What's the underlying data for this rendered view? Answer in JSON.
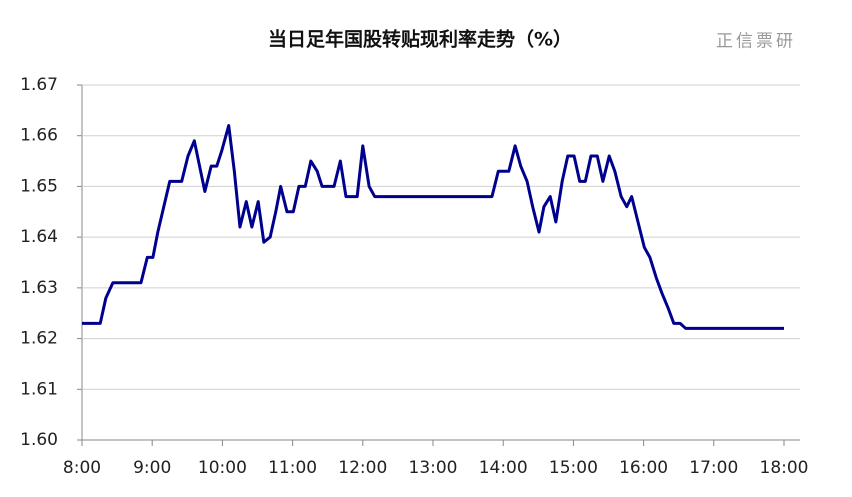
{
  "chart_data": {
    "type": "line",
    "title": "当日足年国股转贴现利率走势（%）",
    "watermark": "正信票研",
    "color": "#00008f",
    "grid": true,
    "xlim": [
      8,
      18
    ],
    "xticks": [
      {
        "value": 8,
        "label": "8:00"
      },
      {
        "value": 9,
        "label": "9:00"
      },
      {
        "value": 10,
        "label": "10:00"
      },
      {
        "value": 11,
        "label": "11:00"
      },
      {
        "value": 12,
        "label": "12:00"
      },
      {
        "value": 13,
        "label": "13:00"
      },
      {
        "value": 14,
        "label": "14:00"
      },
      {
        "value": 15,
        "label": "15:00"
      },
      {
        "value": 16,
        "label": "16:00"
      },
      {
        "value": 17,
        "label": "17:00"
      },
      {
        "value": 18,
        "label": "18:00"
      }
    ],
    "ylim": [
      1.6,
      1.67
    ],
    "yticks": [
      {
        "value": 1.6,
        "label": "1.60"
      },
      1.61,
      1.62,
      1.63,
      1.64,
      1.65,
      1.66,
      1.67
    ],
    "x": [
      8.0,
      8.26,
      8.34,
      8.44,
      8.84,
      8.93,
      9.01,
      9.08,
      9.25,
      9.42,
      9.51,
      9.6,
      9.75,
      9.84,
      9.92,
      9.99,
      10.09,
      10.17,
      10.25,
      10.34,
      10.42,
      10.51,
      10.59,
      10.68,
      10.76,
      10.83,
      10.92,
      11.01,
      11.09,
      11.18,
      11.26,
      11.35,
      11.42,
      11.59,
      11.68,
      11.76,
      11.92,
      12.0,
      12.09,
      12.17,
      13.84,
      13.93,
      14.08,
      14.17,
      14.25,
      14.34,
      14.42,
      14.51,
      14.58,
      14.67,
      14.75,
      14.84,
      14.92,
      15.01,
      15.09,
      15.17,
      15.25,
      15.34,
      15.42,
      15.51,
      15.59,
      15.68,
      15.76,
      15.83,
      15.92,
      16.01,
      16.09,
      16.18,
      16.26,
      16.35,
      16.43,
      16.52,
      16.6,
      18.0
    ],
    "values": [
      1.623,
      1.623,
      1.628,
      1.631,
      1.631,
      1.636,
      1.636,
      1.641,
      1.651,
      1.651,
      1.656,
      1.659,
      1.649,
      1.654,
      1.654,
      1.657,
      1.662,
      1.653,
      1.642,
      1.647,
      1.642,
      1.647,
      1.639,
      1.64,
      1.645,
      1.65,
      1.645,
      1.645,
      1.65,
      1.65,
      1.655,
      1.653,
      1.65,
      1.65,
      1.655,
      1.648,
      1.648,
      1.658,
      1.65,
      1.648,
      1.648,
      1.653,
      1.653,
      1.658,
      1.654,
      1.651,
      1.646,
      1.641,
      1.646,
      1.648,
      1.643,
      1.651,
      1.656,
      1.656,
      1.651,
      1.651,
      1.656,
      1.656,
      1.651,
      1.656,
      1.653,
      1.648,
      1.646,
      1.648,
      1.643,
      1.638,
      1.636,
      1.632,
      1.629,
      1.626,
      1.623,
      1.623,
      1.622,
      1.622
    ]
  }
}
